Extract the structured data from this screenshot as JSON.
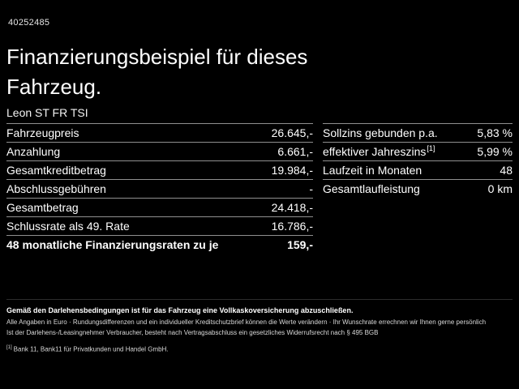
{
  "page": {
    "id": "40252485",
    "title": "Finanzierungsbeispiel für dieses Fahrzeug.",
    "vehicle": "Leon ST FR TSI"
  },
  "left": {
    "rows": [
      {
        "label": "Fahrzeugpreis",
        "value": "26.645,-"
      },
      {
        "label": "Anzahlung",
        "value": "6.661,-"
      },
      {
        "label": "Gesamtkreditbetrag",
        "value": "19.984,-"
      },
      {
        "label": "Abschlussgebühren",
        "value": "-"
      },
      {
        "label": "Gesamtbetrag",
        "value": "24.418,-"
      },
      {
        "label": "Schlussrate als 49. Rate",
        "value": "16.786,-"
      },
      {
        "label": "48 monatliche Finanzierungsraten zu je",
        "value": "159,-"
      }
    ]
  },
  "right": {
    "rows": [
      {
        "label": "Sollzins gebunden p.a.",
        "value": "5,83 %"
      },
      {
        "label": "effektiver Jahreszins",
        "footnote": "[1]",
        "value": "5,99 %"
      },
      {
        "label": "Laufzeit in Monaten",
        "value": "48"
      },
      {
        "label": "Gesamtlaufleistung",
        "value": "0 km"
      }
    ]
  },
  "footer": {
    "bold_line": "Gemäß den Darlehensbedingungen ist für das Fahrzeug eine Vollkaskoversicherung abzuschließen.",
    "line2": "Alle Angaben in Euro · Rundungsdifferenzen und ein individueller Kreditschutzbrief können die Werte verändern · Ihr Wunschrate errechnen wir Ihnen gerne persönlich",
    "line3": "Ist der Darlehens-/Leasingnehmer Verbraucher, besteht nach Vertragsabschluss ein gesetzliches Widerrufsrecht nach § 495 BGB",
    "note_marker": "[1]",
    "note_text": "Bank 11, Bank11 für Privatkunden und Handel GmbH."
  },
  "colors": {
    "background": "#000000",
    "text": "#ffffff",
    "divider": "#8f8f8f"
  }
}
